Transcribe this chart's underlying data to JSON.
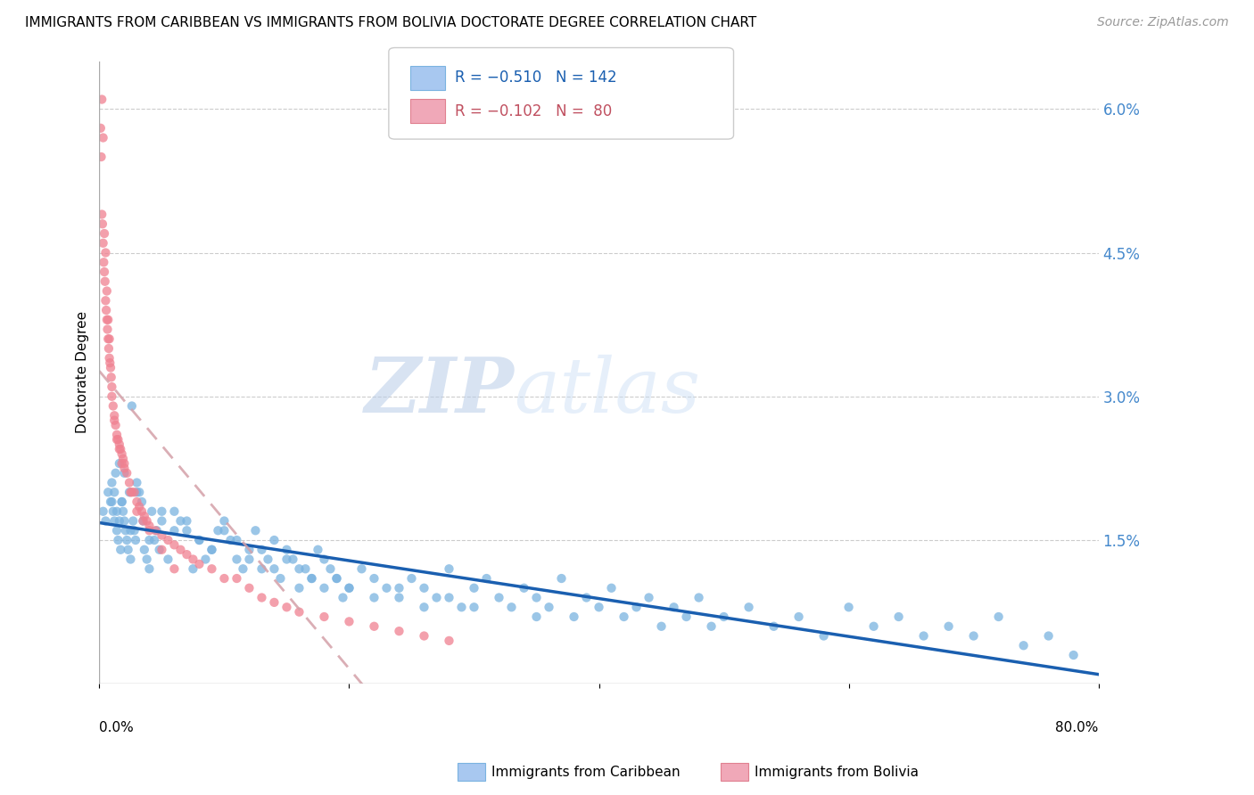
{
  "title": "IMMIGRANTS FROM CARIBBEAN VS IMMIGRANTS FROM BOLIVIA DOCTORATE DEGREE CORRELATION CHART",
  "source": "Source: ZipAtlas.com",
  "ylabel": "Doctorate Degree",
  "xmin": 0.0,
  "xmax": 80.0,
  "ymin": 0.0,
  "ymax": 6.5,
  "watermark_zip": "ZIP",
  "watermark_atlas": "atlas",
  "caribbean_color": "#7ab3e0",
  "bolivia_color": "#f08090",
  "caribbean_line_color": "#1a5fb0",
  "bolivia_line_color": "#d4a0a8",
  "title_fontsize": 11,
  "source_fontsize": 10,
  "legend_fontsize": 12,
  "scatter_alpha": 0.75,
  "scatter_size": 55,
  "caribbean_x": [
    0.3,
    0.5,
    0.7,
    0.9,
    1.0,
    1.1,
    1.2,
    1.3,
    1.4,
    1.5,
    1.6,
    1.7,
    1.8,
    1.9,
    2.0,
    2.1,
    2.2,
    2.3,
    2.4,
    2.5,
    2.6,
    2.7,
    2.8,
    2.9,
    3.0,
    3.2,
    3.4,
    3.6,
    3.8,
    4.0,
    4.2,
    4.4,
    4.6,
    4.8,
    5.0,
    5.5,
    6.0,
    6.5,
    7.0,
    7.5,
    8.0,
    8.5,
    9.0,
    9.5,
    10.0,
    10.5,
    11.0,
    11.5,
    12.0,
    12.5,
    13.0,
    13.5,
    14.0,
    14.5,
    15.0,
    15.5,
    16.0,
    16.5,
    17.0,
    17.5,
    18.0,
    18.5,
    19.0,
    19.5,
    20.0,
    21.0,
    22.0,
    23.0,
    24.0,
    25.0,
    26.0,
    27.0,
    28.0,
    29.0,
    30.0,
    31.0,
    32.0,
    33.0,
    34.0,
    35.0,
    36.0,
    37.0,
    38.0,
    39.0,
    40.0,
    41.0,
    42.0,
    43.0,
    44.0,
    45.0,
    46.0,
    47.0,
    48.0,
    49.0,
    50.0,
    52.0,
    54.0,
    56.0,
    58.0,
    60.0,
    62.0,
    64.0,
    66.0,
    68.0,
    70.0,
    72.0,
    74.0,
    76.0,
    78.0,
    1.0,
    1.2,
    1.4,
    1.6,
    1.8,
    2.0,
    2.5,
    3.0,
    3.5,
    4.0,
    5.0,
    6.0,
    7.0,
    8.0,
    9.0,
    10.0,
    11.0,
    12.0,
    13.0,
    14.0,
    15.0,
    16.0,
    17.0,
    18.0,
    19.0,
    20.0,
    22.0,
    24.0,
    26.0,
    28.0,
    30.0,
    35.0
  ],
  "caribbean_y": [
    1.8,
    1.7,
    2.0,
    1.9,
    2.1,
    1.8,
    1.7,
    2.2,
    1.6,
    1.5,
    2.3,
    1.4,
    1.9,
    1.8,
    1.7,
    1.6,
    1.5,
    1.4,
    2.0,
    1.3,
    2.9,
    1.7,
    1.6,
    1.5,
    2.1,
    2.0,
    1.9,
    1.4,
    1.3,
    1.2,
    1.8,
    1.5,
    1.6,
    1.4,
    1.7,
    1.3,
    1.8,
    1.7,
    1.6,
    1.2,
    1.5,
    1.3,
    1.4,
    1.6,
    1.7,
    1.5,
    1.3,
    1.2,
    1.4,
    1.6,
    1.2,
    1.3,
    1.5,
    1.1,
    1.4,
    1.3,
    1.0,
    1.2,
    1.1,
    1.4,
    1.3,
    1.2,
    1.1,
    0.9,
    1.0,
    1.2,
    1.1,
    1.0,
    0.9,
    1.1,
    1.0,
    0.9,
    1.2,
    0.8,
    1.0,
    1.1,
    0.9,
    0.8,
    1.0,
    0.9,
    0.8,
    1.1,
    0.7,
    0.9,
    0.8,
    1.0,
    0.7,
    0.8,
    0.9,
    0.6,
    0.8,
    0.7,
    0.9,
    0.6,
    0.7,
    0.8,
    0.6,
    0.7,
    0.5,
    0.8,
    0.6,
    0.7,
    0.5,
    0.6,
    0.5,
    0.7,
    0.4,
    0.5,
    0.3,
    1.9,
    2.0,
    1.8,
    1.7,
    1.9,
    2.2,
    1.6,
    2.0,
    1.7,
    1.5,
    1.8,
    1.6,
    1.7,
    1.5,
    1.4,
    1.6,
    1.5,
    1.3,
    1.4,
    1.2,
    1.3,
    1.2,
    1.1,
    1.0,
    1.1,
    1.0,
    0.9,
    1.0,
    0.8,
    0.9,
    0.8,
    0.7
  ],
  "bolivia_x": [
    0.1,
    0.15,
    0.2,
    0.25,
    0.3,
    0.35,
    0.4,
    0.45,
    0.5,
    0.55,
    0.6,
    0.65,
    0.7,
    0.75,
    0.8,
    0.85,
    0.9,
    0.95,
    1.0,
    1.1,
    1.2,
    1.3,
    1.4,
    1.5,
    1.6,
    1.7,
    1.8,
    1.9,
    2.0,
    2.2,
    2.4,
    2.6,
    2.8,
    3.0,
    3.2,
    3.4,
    3.6,
    3.8,
    4.0,
    4.5,
    5.0,
    5.5,
    6.0,
    6.5,
    7.0,
    7.5,
    8.0,
    9.0,
    10.0,
    11.0,
    12.0,
    13.0,
    14.0,
    15.0,
    16.0,
    18.0,
    20.0,
    22.0,
    24.0,
    26.0,
    28.0,
    0.2,
    0.3,
    0.4,
    0.5,
    0.6,
    0.7,
    0.8,
    1.0,
    1.2,
    1.4,
    1.6,
    1.8,
    2.0,
    2.5,
    3.0,
    3.5,
    4.0,
    5.0,
    6.0
  ],
  "bolivia_y": [
    5.8,
    5.5,
    4.9,
    4.8,
    4.6,
    4.4,
    4.3,
    4.2,
    4.0,
    3.9,
    3.8,
    3.7,
    3.6,
    3.5,
    3.4,
    3.35,
    3.3,
    3.2,
    3.1,
    2.9,
    2.8,
    2.7,
    2.6,
    2.55,
    2.5,
    2.45,
    2.4,
    2.35,
    2.3,
    2.2,
    2.1,
    2.0,
    2.0,
    1.9,
    1.85,
    1.8,
    1.75,
    1.7,
    1.65,
    1.6,
    1.55,
    1.5,
    1.45,
    1.4,
    1.35,
    1.3,
    1.25,
    1.2,
    1.1,
    1.1,
    1.0,
    0.9,
    0.85,
    0.8,
    0.75,
    0.7,
    0.65,
    0.6,
    0.55,
    0.5,
    0.45,
    6.1,
    5.7,
    4.7,
    4.5,
    4.1,
    3.8,
    3.6,
    3.0,
    2.75,
    2.55,
    2.45,
    2.3,
    2.25,
    2.0,
    1.8,
    1.7,
    1.6,
    1.4,
    1.2
  ]
}
